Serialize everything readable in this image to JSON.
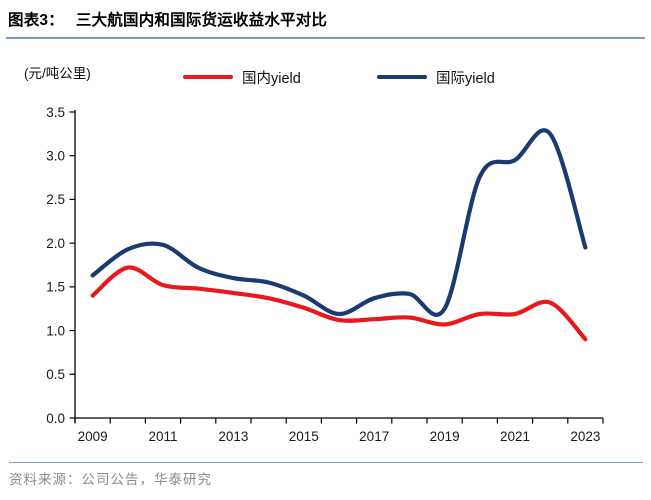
{
  "header": {
    "prefix": "图表3：",
    "title": "三大航国内和国际货运收益水平对比"
  },
  "axis_unit_label": "(元/吨公里)",
  "legend": [
    {
      "label": "国内yield",
      "color": "#E8191C"
    },
    {
      "label": "国际yield",
      "color": "#1B3A6F"
    }
  ],
  "footer": {
    "source_text": "资料来源：公司公告，华泰研究"
  },
  "colors": {
    "domestic_red": "#E8191C",
    "international_blue": "#1B3A6F",
    "rule_blue": "#7C99BC",
    "footer_gray": "#8C8C8C",
    "axis_black": "#000000",
    "tick_label": "#1A1A1A"
  },
  "chart_data": {
    "type": "line",
    "title": "三大航国内和国际货运收益水平对比",
    "unit": "元/吨公里",
    "x": [
      2009,
      2010,
      2011,
      2012,
      2013,
      2014,
      2015,
      2016,
      2017,
      2018,
      2019,
      2020,
      2021,
      2022,
      2023
    ],
    "x_tick_labels": [
      "2009",
      "2011",
      "2013",
      "2015",
      "2017",
      "2019",
      "2021",
      "2023"
    ],
    "ylim": [
      0.0,
      3.5
    ],
    "ytick_interval": 0.5,
    "grid": false,
    "smooth": true,
    "legend_position": "top",
    "series": [
      {
        "name": "国内yield",
        "color": "#E8191C",
        "values": [
          1.4,
          1.72,
          1.52,
          1.48,
          1.43,
          1.37,
          1.26,
          1.12,
          1.13,
          1.15,
          1.07,
          1.19,
          1.19,
          1.32,
          0.9
        ]
      },
      {
        "name": "国际yield",
        "color": "#1B3A6F",
        "values": [
          1.63,
          1.93,
          1.98,
          1.72,
          1.6,
          1.55,
          1.4,
          1.19,
          1.37,
          1.42,
          1.25,
          2.76,
          2.95,
          3.25,
          1.95
        ]
      }
    ]
  }
}
